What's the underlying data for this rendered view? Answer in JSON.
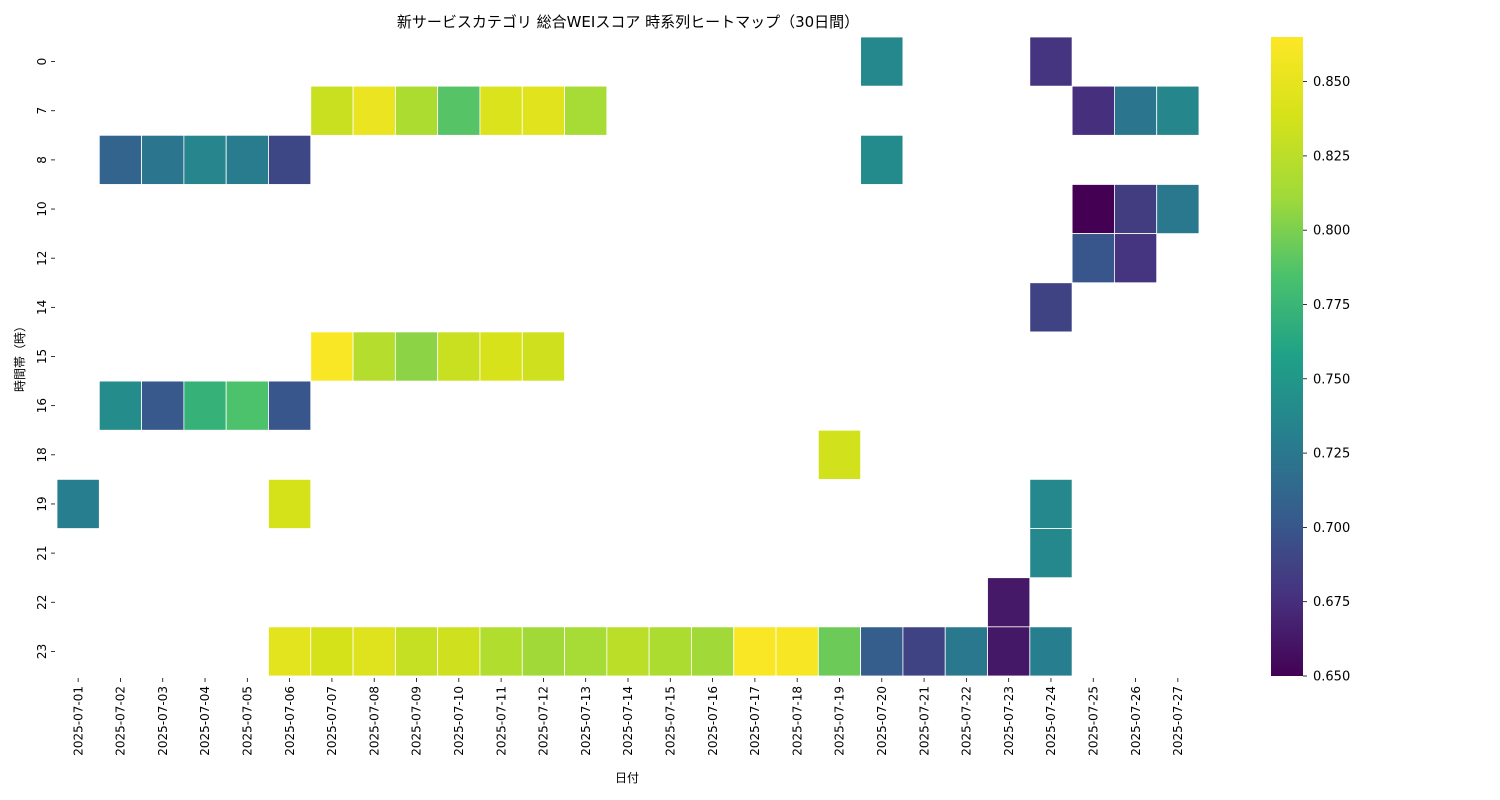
{
  "chart_data": {
    "type": "heatmap",
    "title": "新サービスカテゴリ 総合WEIスコア 時系列ヒートマップ（30日間）",
    "xlabel": "日付",
    "ylabel": "時間帯（時）",
    "x": [
      "2025-07-01",
      "2025-07-02",
      "2025-07-03",
      "2025-07-04",
      "2025-07-05",
      "2025-07-06",
      "2025-07-07",
      "2025-07-08",
      "2025-07-09",
      "2025-07-10",
      "2025-07-11",
      "2025-07-12",
      "2025-07-13",
      "2025-07-14",
      "2025-07-15",
      "2025-07-16",
      "2025-07-17",
      "2025-07-18",
      "2025-07-19",
      "2025-07-20",
      "2025-07-21",
      "2025-07-22",
      "2025-07-23",
      "2025-07-24",
      "2025-07-25",
      "2025-07-26",
      "2025-07-27"
    ],
    "y": [
      "0",
      "7",
      "8",
      "10",
      "12",
      "14",
      "15",
      "16",
      "18",
      "19",
      "21",
      "22",
      "23"
    ],
    "colormap": "viridis",
    "vmin": 0.65,
    "vmax": 0.865,
    "colorbar_ticks": [
      "0.650",
      "0.675",
      "0.700",
      "0.725",
      "0.750",
      "0.775",
      "0.800",
      "0.825",
      "0.850"
    ],
    "values": [
      [
        null,
        null,
        null,
        null,
        null,
        null,
        null,
        null,
        null,
        null,
        null,
        null,
        null,
        null,
        null,
        null,
        null,
        null,
        null,
        0.738,
        null,
        null,
        null,
        0.678,
        null,
        null,
        null
      ],
      [
        null,
        null,
        null,
        null,
        null,
        null,
        0.832,
        0.852,
        0.818,
        0.788,
        0.842,
        0.846,
        0.815,
        null,
        null,
        null,
        null,
        null,
        null,
        null,
        null,
        null,
        null,
        null,
        0.676,
        0.723,
        0.737
      ],
      [
        null,
        0.71,
        0.723,
        0.735,
        0.728,
        0.69,
        null,
        null,
        null,
        null,
        null,
        null,
        null,
        null,
        null,
        null,
        null,
        null,
        null,
        0.74,
        null,
        null,
        null,
        null,
        null,
        null,
        null
      ],
      [
        null,
        null,
        null,
        null,
        null,
        null,
        null,
        null,
        null,
        null,
        null,
        null,
        null,
        null,
        null,
        null,
        null,
        null,
        null,
        null,
        null,
        null,
        null,
        null,
        0.65,
        0.683,
        0.725
      ],
      [
        null,
        null,
        null,
        null,
        null,
        null,
        null,
        null,
        null,
        null,
        null,
        null,
        null,
        null,
        null,
        null,
        null,
        null,
        null,
        null,
        null,
        null,
        null,
        null,
        0.7,
        0.678,
        null
      ],
      [
        null,
        null,
        null,
        null,
        null,
        null,
        null,
        null,
        null,
        null,
        null,
        null,
        null,
        null,
        null,
        null,
        null,
        null,
        null,
        null,
        null,
        null,
        null,
        0.688,
        null,
        null,
        null
      ],
      [
        null,
        null,
        null,
        null,
        null,
        null,
        0.862,
        0.822,
        0.805,
        0.832,
        0.84,
        0.835,
        null,
        null,
        null,
        null,
        null,
        null,
        null,
        null,
        null,
        null,
        null,
        null,
        null,
        null,
        null
      ],
      [
        null,
        0.742,
        0.702,
        0.772,
        0.785,
        0.7,
        null,
        null,
        null,
        null,
        null,
        null,
        null,
        null,
        null,
        null,
        null,
        null,
        null,
        null,
        null,
        null,
        null,
        null,
        null,
        null,
        null
      ],
      [
        null,
        null,
        null,
        null,
        null,
        null,
        null,
        null,
        null,
        null,
        null,
        null,
        null,
        null,
        null,
        null,
        null,
        null,
        0.836,
        null,
        null,
        null,
        null,
        null,
        null,
        null,
        null
      ],
      [
        0.73,
        null,
        null,
        null,
        null,
        0.838,
        null,
        null,
        null,
        null,
        null,
        null,
        null,
        null,
        null,
        null,
        null,
        null,
        null,
        null,
        null,
        null,
        null,
        0.738,
        null,
        null,
        null
      ],
      [
        null,
        null,
        null,
        null,
        null,
        null,
        null,
        null,
        null,
        null,
        null,
        null,
        null,
        null,
        null,
        null,
        null,
        null,
        null,
        null,
        null,
        null,
        null,
        0.738,
        null,
        null,
        null
      ],
      [
        null,
        null,
        null,
        null,
        null,
        null,
        null,
        null,
        null,
        null,
        null,
        null,
        null,
        null,
        null,
        null,
        null,
        null,
        null,
        null,
        null,
        null,
        0.663,
        null,
        null,
        null,
        null
      ],
      [
        null,
        null,
        null,
        null,
        null,
        0.848,
        0.838,
        0.845,
        0.83,
        0.835,
        0.82,
        0.812,
        0.815,
        0.825,
        0.818,
        0.812,
        0.862,
        0.86,
        0.795,
        0.705,
        0.688,
        0.725,
        0.662,
        0.73,
        null,
        null,
        null
      ]
    ]
  }
}
